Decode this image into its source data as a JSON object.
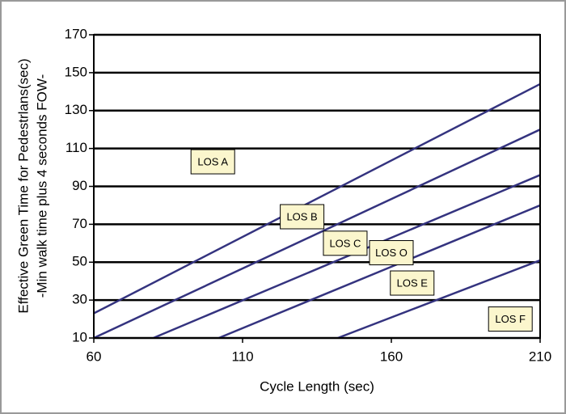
{
  "chart_data": {
    "type": "line",
    "xlabel": "Cycle Length (sec)",
    "ylabel": [
      "Effective Green Time for Pedestrlans(sec)",
      "-Min walk time plus 4 seconds FOW-"
    ],
    "xlim": [
      60,
      210
    ],
    "xticks": [
      60,
      110,
      160,
      210
    ],
    "ylim": [
      10,
      170
    ],
    "yticks": [
      10,
      30,
      50,
      70,
      90,
      110,
      130,
      150,
      170
    ],
    "grid": true,
    "series": [
      {
        "color": "#34337f",
        "x": [
          60,
          210
        ],
        "values": [
          23,
          144
        ]
      },
      {
        "color": "#34337f",
        "x": [
          60,
          210
        ],
        "values": [
          10,
          120
        ]
      },
      {
        "color": "#34337f",
        "x": [
          80,
          210
        ],
        "values": [
          10,
          96
        ]
      },
      {
        "color": "#34337f",
        "x": [
          102,
          210
        ],
        "values": [
          10,
          80
        ]
      },
      {
        "color": "#34337f",
        "x": [
          142,
          210
        ],
        "values": [
          10,
          51
        ]
      }
    ],
    "annotations": [
      {
        "text": "LOS A",
        "x": 100,
        "y": 103
      },
      {
        "text": "LOS B",
        "x": 130,
        "y": 74
      },
      {
        "text": "LOS C",
        "x": 144.5,
        "y": 60
      },
      {
        "text": "LOS O",
        "x": 160,
        "y": 55
      },
      {
        "text": "LOS E",
        "x": 167,
        "y": 39
      },
      {
        "text": "LOS F",
        "x": 200,
        "y": 20
      }
    ]
  }
}
